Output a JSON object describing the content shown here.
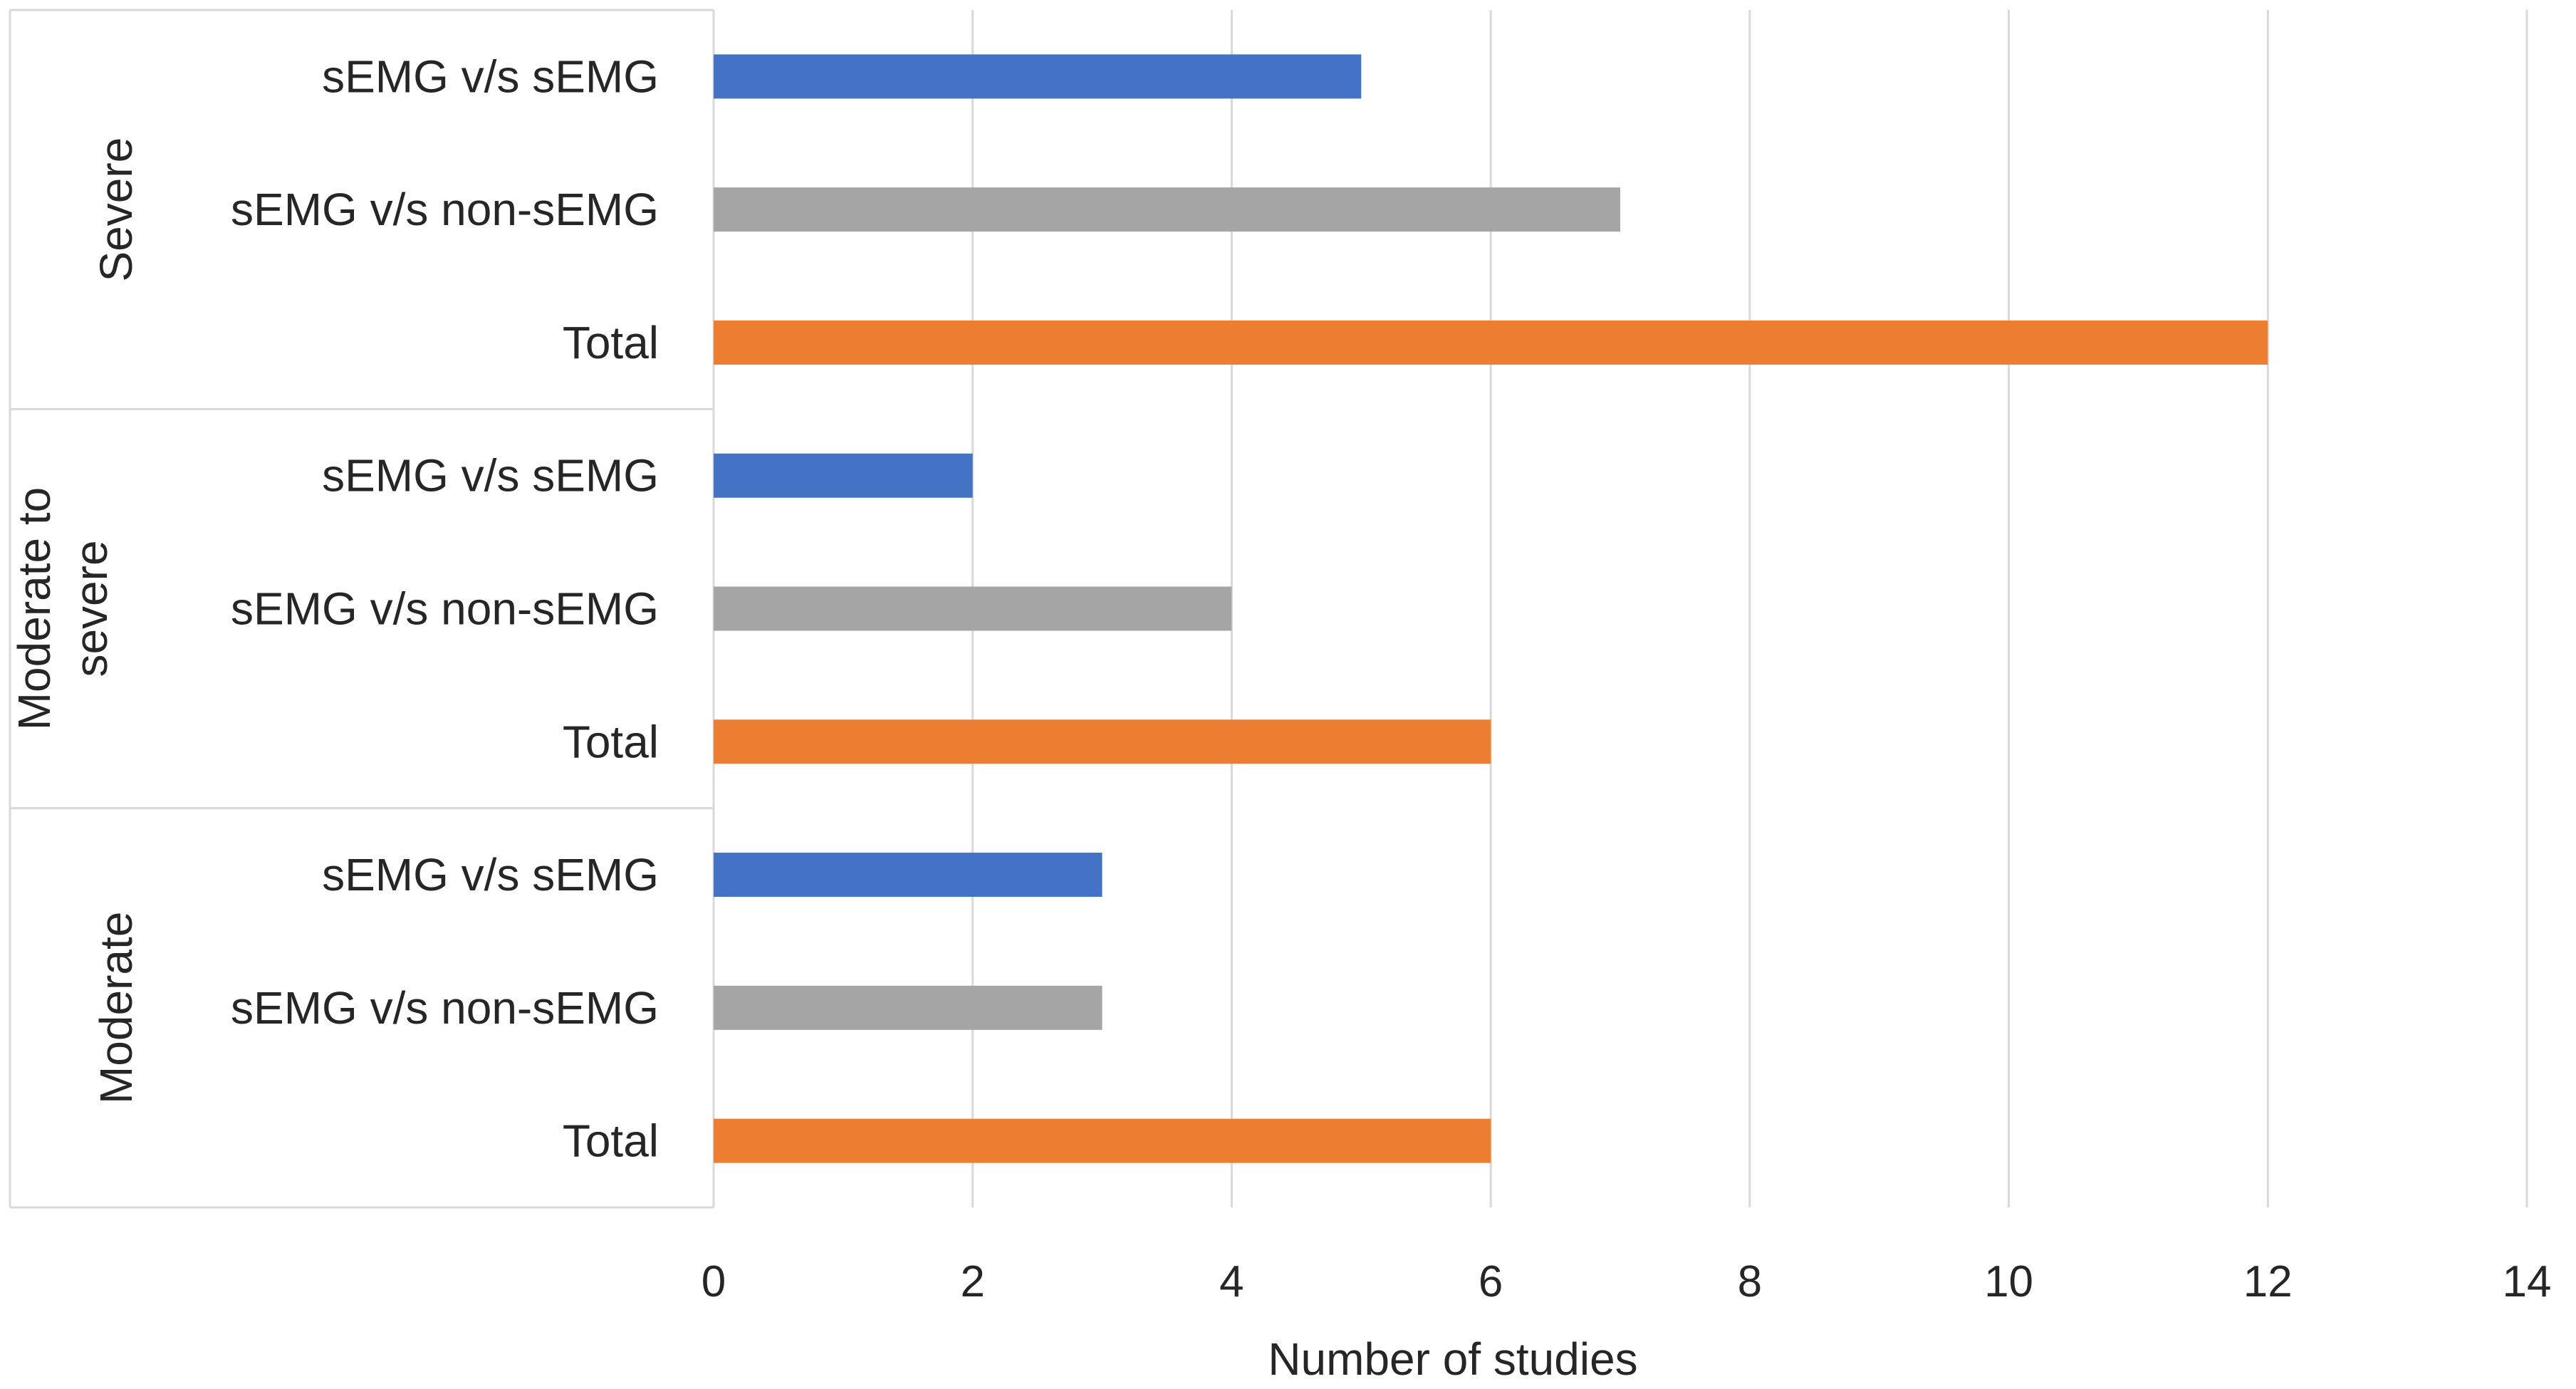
{
  "chart_data": {
    "type": "bar",
    "orientation": "horizontal",
    "xlabel": "Number of studies",
    "xlim": [
      0,
      14
    ],
    "xticks": [
      0,
      2,
      4,
      6,
      8,
      10,
      12,
      14
    ],
    "grid": true,
    "series_colors": {
      "sEMG v/s sEMG": "#4472c4",
      "sEMG v/s non-sEMG": "#a5a5a5",
      "Total": "#ed7d31"
    },
    "groups": [
      {
        "name": "Severe",
        "bars": [
          {
            "label": "sEMG v/s sEMG",
            "value": 5
          },
          {
            "label": "sEMG v/s non-sEMG",
            "value": 7
          },
          {
            "label": "Total",
            "value": 12
          }
        ]
      },
      {
        "name": "Moderate to severe",
        "name_lines": [
          "Moderate to",
          "severe"
        ],
        "bars": [
          {
            "label": "sEMG v/s sEMG",
            "value": 2
          },
          {
            "label": "sEMG v/s non-sEMG",
            "value": 4
          },
          {
            "label": "Total",
            "value": 6
          }
        ]
      },
      {
        "name": "Moderate",
        "bars": [
          {
            "label": "sEMG v/s sEMG",
            "value": 3
          },
          {
            "label": "sEMG v/s non-sEMG",
            "value": 3
          },
          {
            "label": "Total",
            "value": 6
          }
        ]
      }
    ]
  }
}
